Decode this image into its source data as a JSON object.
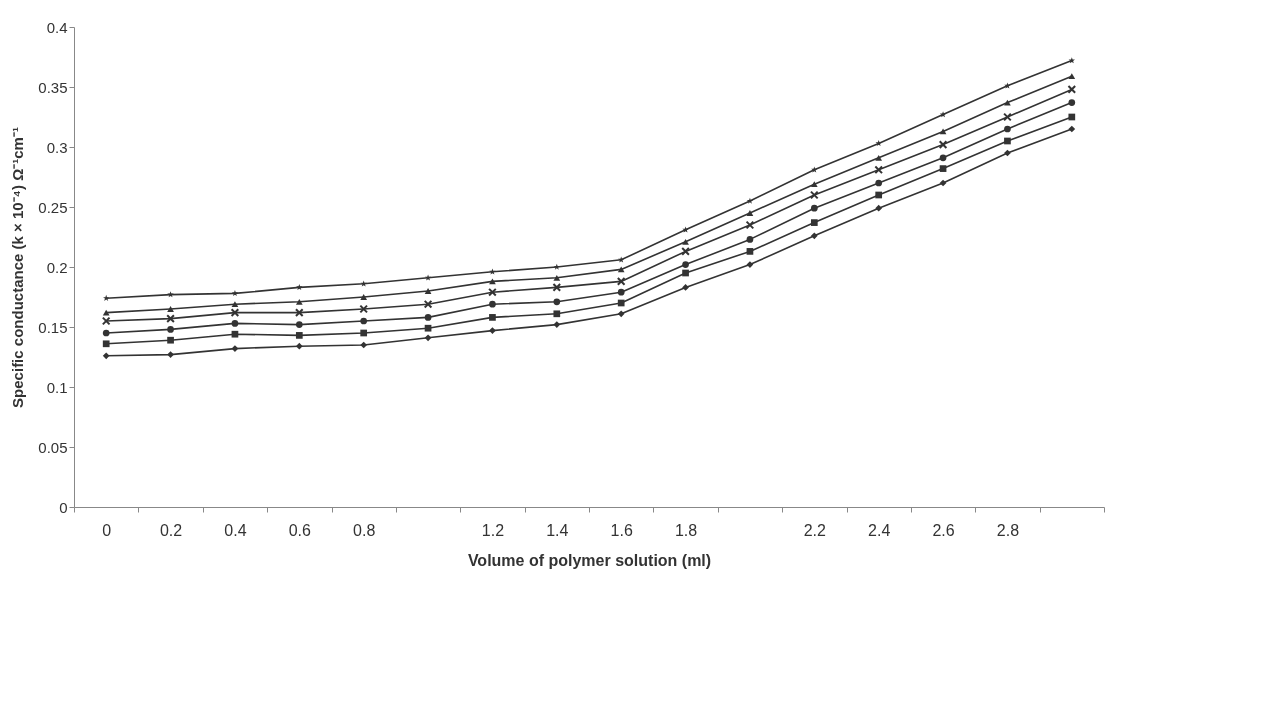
{
  "chart_data": {
    "type": "line",
    "xlabel": "Volume of polymer solution (ml)",
    "ylabel": "Specific conductance (k × 10⁻⁴) Ω⁻¹cm⁻¹",
    "categories": [
      "0",
      "0.2",
      "0.4",
      "0.6",
      "0.8",
      null,
      "1.2",
      "1.4",
      "1.6",
      "1.8",
      null,
      "2.2",
      "2.4",
      "2.6",
      "2.8",
      null
    ],
    "ylim": [
      0,
      0.4
    ],
    "yticks": [
      0,
      0.05,
      0.1,
      0.15,
      0.2,
      0.25,
      0.3,
      0.35,
      0.4
    ],
    "grid": false,
    "legend": false,
    "line_style": "solid",
    "series": [
      {
        "color": "#333333",
        "marker": "diamond",
        "values": [
          0.126,
          0.127,
          0.132,
          0.134,
          0.135,
          0.141,
          0.147,
          0.152,
          0.161,
          0.183,
          0.202,
          0.226,
          0.249,
          0.27,
          0.295,
          0.315
        ]
      },
      {
        "color": "#333333",
        "marker": "square",
        "values": [
          0.136,
          0.139,
          0.144,
          0.143,
          0.145,
          0.149,
          0.158,
          0.161,
          0.17,
          0.195,
          0.213,
          0.237,
          0.26,
          0.282,
          0.305,
          0.325
        ]
      },
      {
        "color": "#333333",
        "marker": "circle",
        "values": [
          0.145,
          0.148,
          0.153,
          0.152,
          0.155,
          0.158,
          0.169,
          0.171,
          0.179,
          0.202,
          0.223,
          0.249,
          0.27,
          0.291,
          0.315,
          0.337
        ]
      },
      {
        "color": "#333333",
        "marker": "cross",
        "values": [
          0.155,
          0.157,
          0.162,
          0.162,
          0.165,
          0.169,
          0.179,
          0.183,
          0.188,
          0.213,
          0.235,
          0.26,
          0.281,
          0.302,
          0.325,
          0.348
        ]
      },
      {
        "color": "#333333",
        "marker": "triangle",
        "values": [
          0.162,
          0.165,
          0.169,
          0.171,
          0.175,
          0.18,
          0.188,
          0.191,
          0.198,
          0.221,
          0.245,
          0.269,
          0.291,
          0.313,
          0.337,
          0.359
        ]
      },
      {
        "color": "#333333",
        "marker": "star",
        "values": [
          0.174,
          0.177,
          0.178,
          0.183,
          0.186,
          0.191,
          0.196,
          0.2,
          0.206,
          0.231,
          0.255,
          0.281,
          0.303,
          0.327,
          0.351,
          0.372
        ]
      }
    ]
  }
}
